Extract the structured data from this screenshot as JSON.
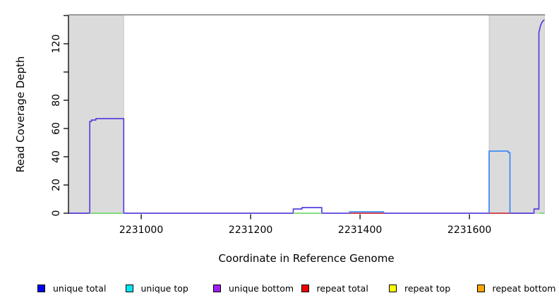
{
  "chart_data": {
    "type": "line",
    "title": "",
    "xlabel": "Coordinate in Reference Genome",
    "ylabel": "Read Coverage Depth",
    "xlim": [
      2230867,
      2231737
    ],
    "ylim": [
      0,
      140
    ],
    "x_ticks": [
      2231000,
      2231200,
      2231400,
      2231600
    ],
    "y_ticks": [
      0,
      20,
      40,
      60,
      80,
      100,
      120,
      140
    ],
    "y_tick_labels": [
      "0",
      "20",
      "40",
      "60",
      "80",
      "",
      "120",
      ""
    ],
    "grid": false,
    "shaded_regions": [
      {
        "name": "masked-region-left",
        "from": 2230867,
        "to": 2230968,
        "color": "#dbdbdb"
      },
      {
        "name": "masked-region-right",
        "from": 2231636,
        "to": 2231737,
        "color": "#dbdbdb"
      }
    ],
    "top_boundary_line": {
      "y": 140.5,
      "color": "#8f8f8f"
    },
    "series": [
      {
        "name": "unique-coverage-trace",
        "legend_match": "unique bottom",
        "color": "#5840dc",
        "style": "step",
        "points": [
          [
            2230867,
            0
          ],
          [
            2230906,
            0
          ],
          [
            2230906,
            65
          ],
          [
            2230909,
            65
          ],
          [
            2230909,
            66
          ],
          [
            2230917,
            66
          ],
          [
            2230917,
            67
          ],
          [
            2230968,
            67
          ],
          [
            2230968,
            0
          ],
          [
            2231278,
            0
          ],
          [
            2231278,
            3
          ],
          [
            2231294,
            3
          ],
          [
            2231294,
            4
          ],
          [
            2231330,
            4
          ],
          [
            2231330,
            0
          ],
          [
            2231718,
            0
          ],
          [
            2231718,
            3
          ],
          [
            2231727,
            3
          ],
          [
            2231727,
            128
          ],
          [
            2231730,
            133
          ],
          [
            2231733,
            135.5
          ],
          [
            2231737,
            137
          ]
        ]
      },
      {
        "name": "unique-top-trace",
        "legend_match": "unique top",
        "color": "#3f8df5",
        "style": "step",
        "segments": [
          [
            [
              2231381,
              0
            ],
            [
              2231381,
              1
            ],
            [
              2231443,
              1
            ],
            [
              2231443,
              0
            ]
          ],
          [
            [
              2231636,
              0
            ],
            [
              2231636,
              44
            ],
            [
              2231671,
              44
            ],
            [
              2231671,
              43
            ],
            [
              2231674,
              43
            ],
            [
              2231674,
              0
            ]
          ]
        ]
      },
      {
        "name": "repeat-total-baseline",
        "legend_match": "repeat total",
        "color": "#e04545",
        "style": "baseline",
        "value": 0,
        "segments": [
          [
            2231381,
            2231443
          ],
          [
            2231636,
            2231674
          ]
        ]
      },
      {
        "name": "green-baseline",
        "legend_match": "",
        "color": "#77d877",
        "style": "baseline",
        "value": 0,
        "segments": [
          [
            2230906,
            2230968
          ],
          [
            2231278,
            2231330
          ],
          [
            2231728,
            2231737
          ]
        ]
      }
    ],
    "legend": {
      "position": "bottom",
      "items": [
        {
          "label": "unique total",
          "color": "#0000f0"
        },
        {
          "label": "unique top",
          "color": "#00e8f0"
        },
        {
          "label": "unique bottom",
          "color": "#a020f0"
        },
        {
          "label": "repeat total",
          "color": "#ee0000"
        },
        {
          "label": "repeat top",
          "color": "#ffff00"
        },
        {
          "label": "repeat bottom",
          "color": "#ffa500"
        }
      ]
    }
  }
}
